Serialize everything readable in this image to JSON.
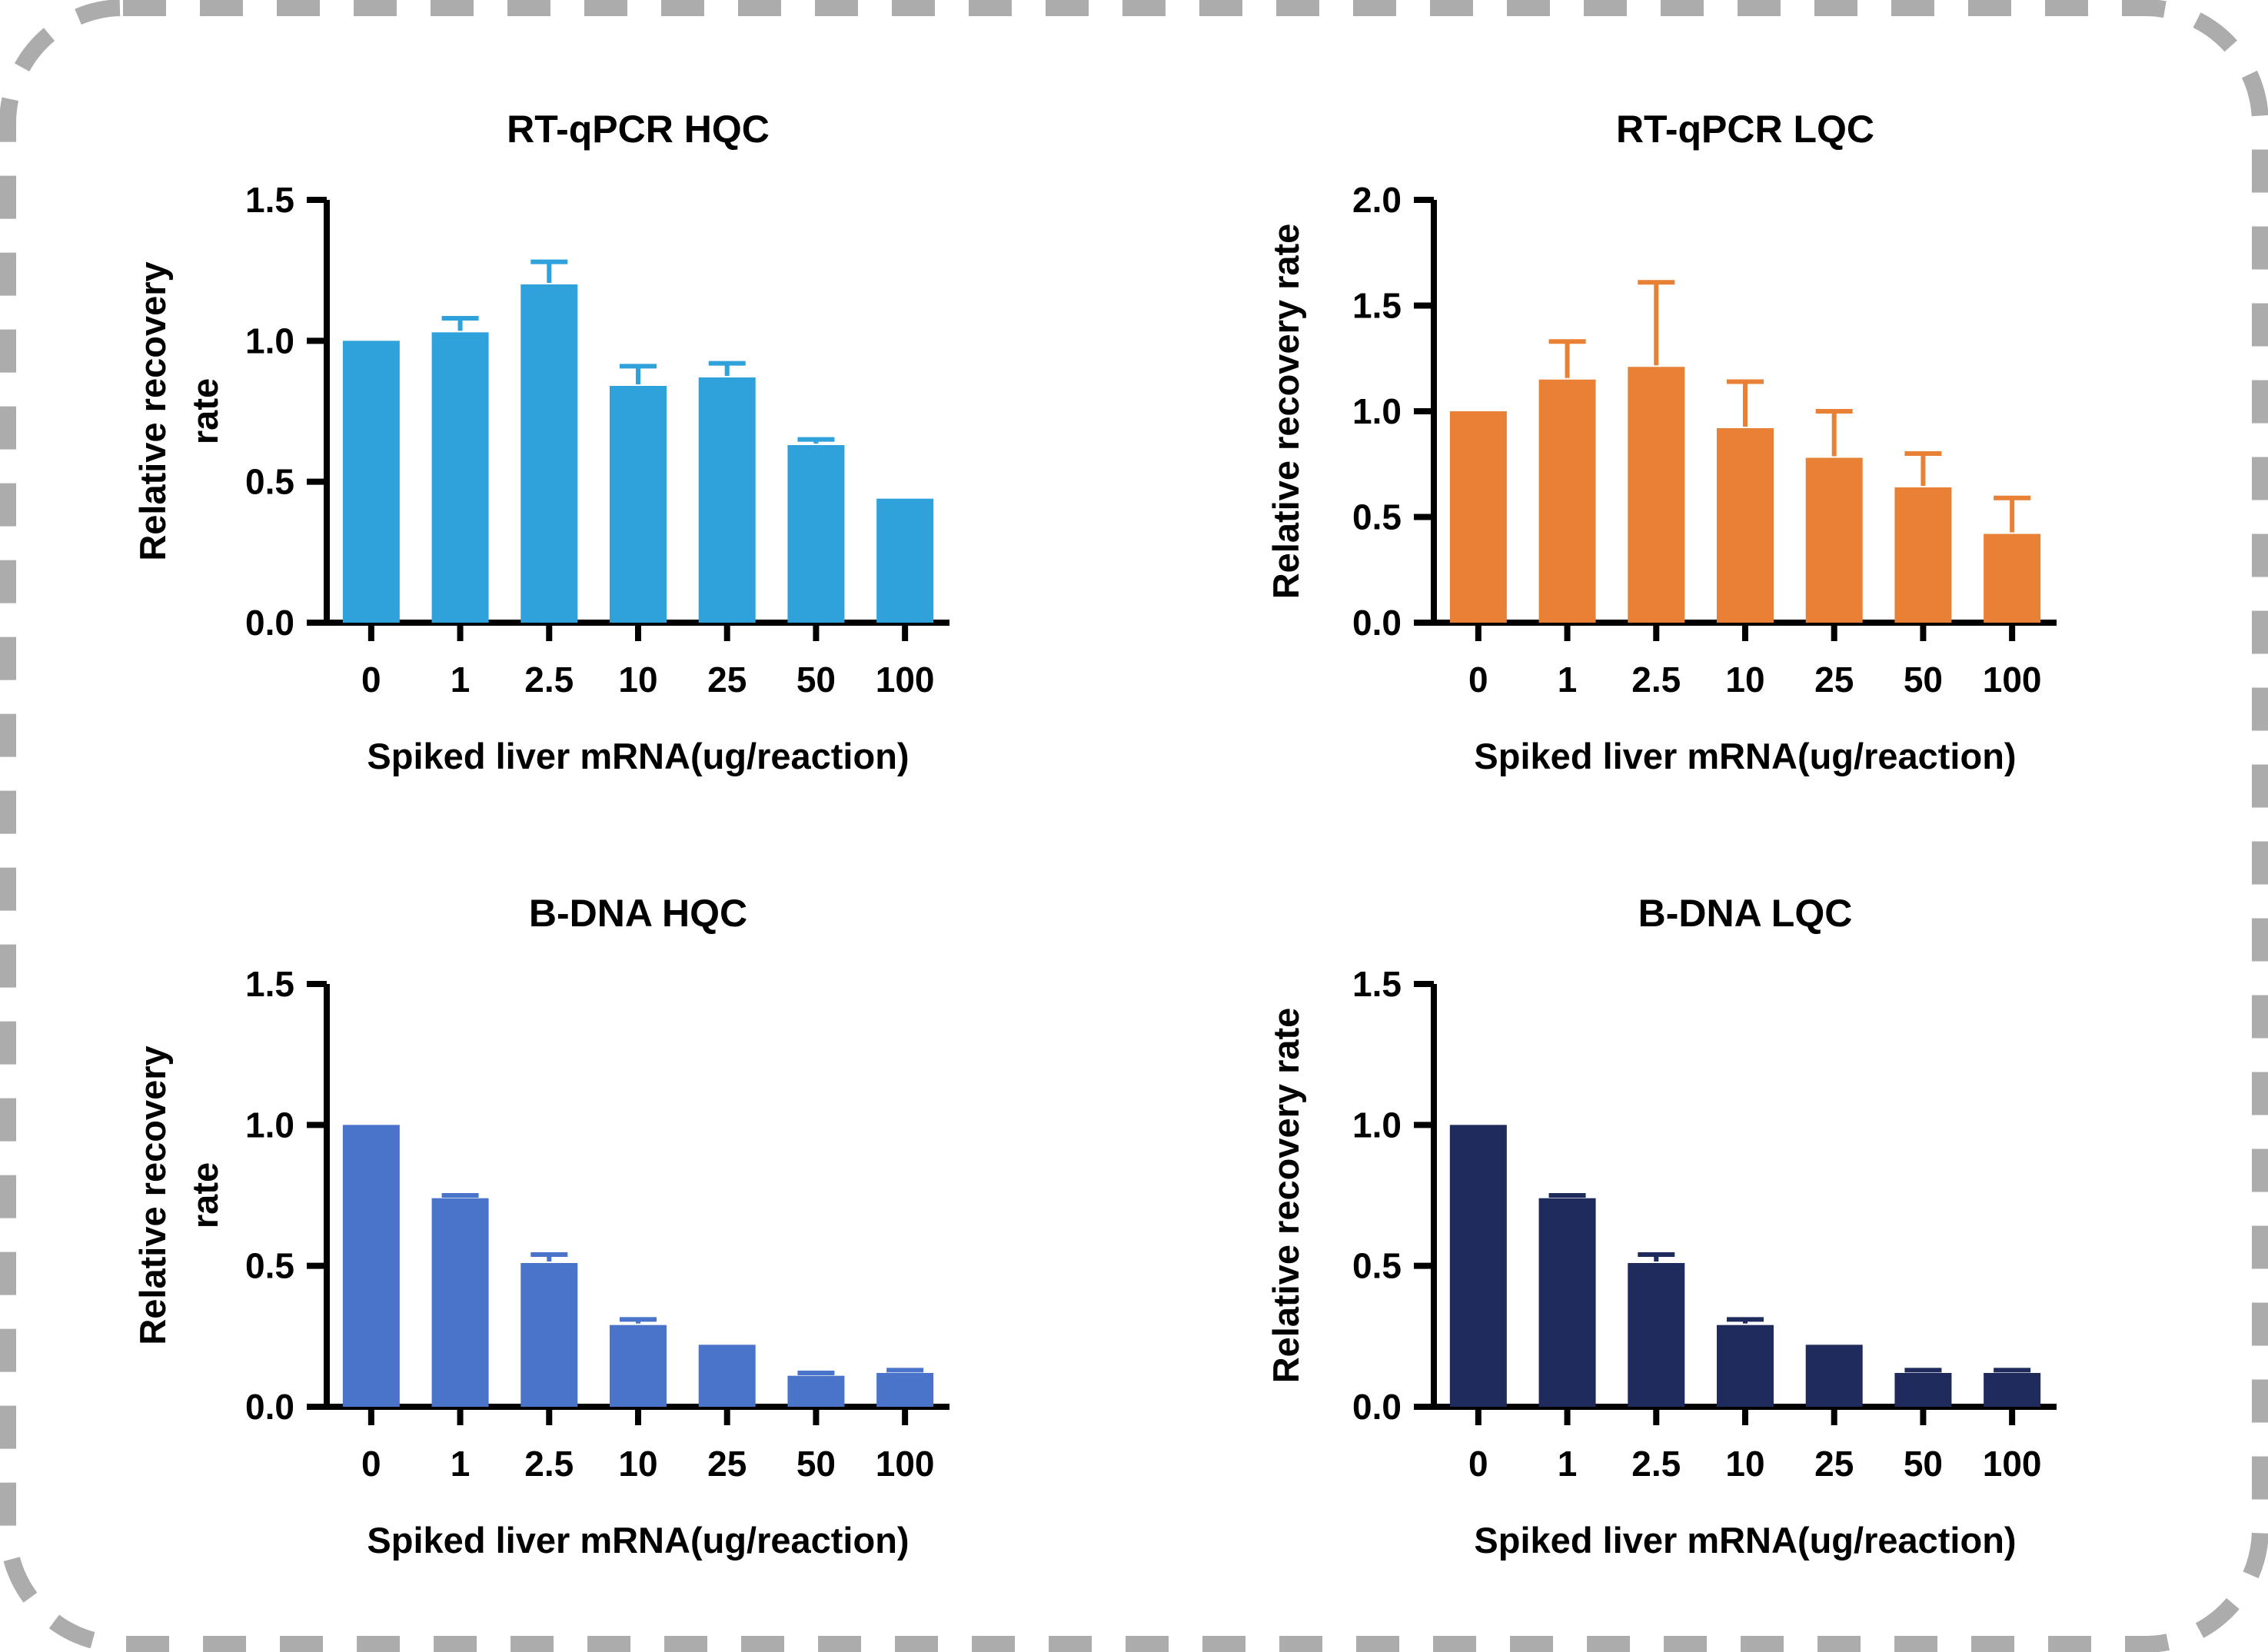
{
  "page": {
    "background": "#FFFFFF",
    "border_color": "#ACACAC",
    "axis_color": "#000000",
    "text_color": "#000000"
  },
  "chart_data": [
    {
      "type": "bar",
      "title": "RT-qPCR HQC",
      "xlabel": "Spiked liver mRNA(ug/reaction)",
      "ylabel_lines": [
        "Relative recovery",
        "rate"
      ],
      "categories": [
        "0",
        "1",
        "2.5",
        "10",
        "25",
        "50",
        "100"
      ],
      "values": [
        1.0,
        1.03,
        1.2,
        0.84,
        0.87,
        0.63,
        0.44
      ],
      "errors": [
        0,
        0.05,
        0.08,
        0.07,
        0.05,
        0.02,
        0
      ],
      "bar_color": "#2FA2DB",
      "ylim": [
        0,
        1.5
      ],
      "yticks": [
        "0.0",
        "0.5",
        "1.0",
        "1.5"
      ],
      "grid": "off",
      "legend": "none"
    },
    {
      "type": "bar",
      "title": "RT-qPCR LQC",
      "xlabel": "Spiked liver mRNA(ug/reaction)",
      "ylabel_lines": [
        "Relative recovery rate"
      ],
      "categories": [
        "0",
        "1",
        "2.5",
        "10",
        "25",
        "50",
        "100"
      ],
      "values": [
        1.0,
        1.15,
        1.21,
        0.92,
        0.78,
        0.64,
        0.42
      ],
      "errors": [
        0,
        0.18,
        0.4,
        0.22,
        0.22,
        0.16,
        0.17
      ],
      "bar_color": "#E88135",
      "ylim": [
        0,
        2.0
      ],
      "yticks": [
        "0.0",
        "0.5",
        "1.0",
        "1.5",
        "2.0"
      ],
      "grid": "off",
      "legend": "none"
    },
    {
      "type": "bar",
      "title": "B-DNA HQC",
      "xlabel": "Spiked liver mRNA(ug/reaction)",
      "ylabel_lines": [
        "Relative recovery",
        "rate"
      ],
      "categories": [
        "0",
        "1",
        "2.5",
        "10",
        "25",
        "50",
        "100"
      ],
      "values": [
        1.0,
        0.74,
        0.51,
        0.29,
        0.22,
        0.11,
        0.12
      ],
      "errors": [
        0,
        0.01,
        0.03,
        0.02,
        0,
        0.01,
        0.01
      ],
      "bar_color": "#4A74C9",
      "ylim": [
        0,
        1.5
      ],
      "yticks": [
        "0.0",
        "0.5",
        "1.0",
        "1.5"
      ],
      "grid": "off",
      "legend": "none"
    },
    {
      "type": "bar",
      "title": "B-DNA LQC",
      "xlabel": "Spiked liver mRNA(ug/reaction)",
      "ylabel_lines": [
        "Relative recovery rate"
      ],
      "categories": [
        "0",
        "1",
        "2.5",
        "10",
        "25",
        "50",
        "100"
      ],
      "values": [
        1.0,
        0.74,
        0.51,
        0.29,
        0.22,
        0.12,
        0.12
      ],
      "errors": [
        0,
        0.01,
        0.03,
        0.02,
        0,
        0.01,
        0.01
      ],
      "bar_color": "#1F2B5C",
      "ylim": [
        0,
        1.5
      ],
      "yticks": [
        "0.0",
        "0.5",
        "1.0",
        "1.5"
      ],
      "grid": "off",
      "legend": "none"
    }
  ]
}
